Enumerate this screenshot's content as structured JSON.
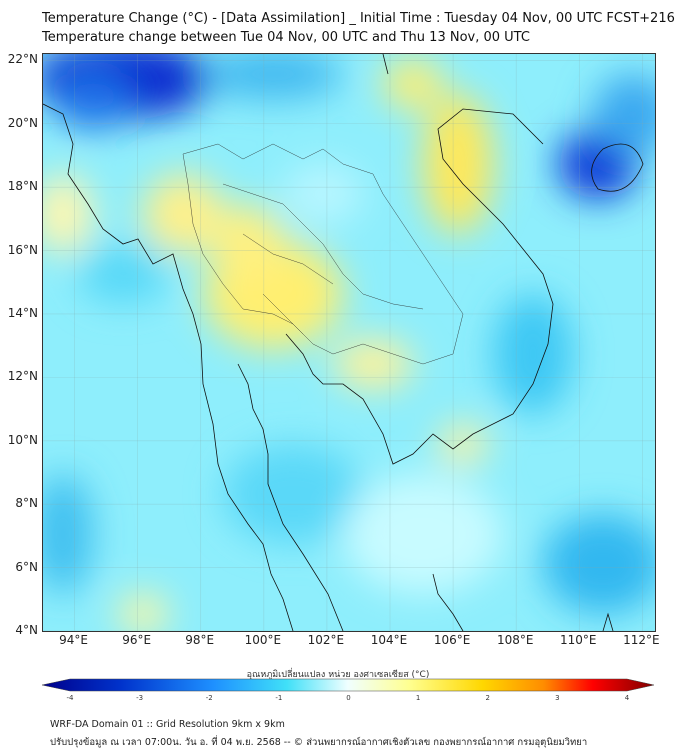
{
  "title": {
    "line1": "Temperature Change (°C) - [Data Assimilation] _ Initial Time : Tuesday 04 Nov, 00 UTC FCST+216",
    "line2": "Temperature change between Tue 04 Nov, 00 UTC and Thu 13 Nov, 00 UTC"
  },
  "map": {
    "lat_labels": [
      "22°N",
      "20°N",
      "18°N",
      "16°N",
      "14°N",
      "12°N",
      "10°N",
      "8°N",
      "6°N",
      "4°N"
    ],
    "lat_values": [
      22,
      20,
      18,
      16,
      14,
      12,
      10,
      8,
      6,
      4
    ],
    "lon_labels": [
      "94°E",
      "96°E",
      "98°E",
      "100°E",
      "102°E",
      "104°E",
      "106°E",
      "108°E",
      "110°E",
      "112°E"
    ],
    "lon_values": [
      94,
      96,
      98,
      100,
      102,
      104,
      106,
      108,
      110,
      112
    ],
    "extent": {
      "lon": [
        93,
        112.4
      ],
      "lat": [
        4,
        22.2
      ]
    }
  },
  "colorbar": {
    "label": "อุณหภูมิเปลี่ยนแปลง หน่วย องศาเซลเซียส (°C)",
    "ticks": [
      "-4",
      "-3",
      "-2",
      "-1",
      "0",
      "1",
      "2",
      "3",
      "4"
    ],
    "range": [
      -4,
      4
    ],
    "colors": [
      "#00008b",
      "#0033cc",
      "#1e90ff",
      "#40e0f8",
      "#e8ffff",
      "#ffffa0",
      "#ffd700",
      "#ff8c00",
      "#ff0000",
      "#800000"
    ]
  },
  "footer": {
    "line1": "WRF-DA Domain 01 :: Grid Resolution 9km x 9km",
    "line2": "ปรับปรุงข้อมูล ณ เวลา 07:00น. วัน อ. ที่ 04 พ.ย. 2568 -- © ส่วนพยากรณ์อากาศเชิงตัวเลข กองพยากรณ์อากาศ กรมอุตุนิยมวิทยา"
  }
}
